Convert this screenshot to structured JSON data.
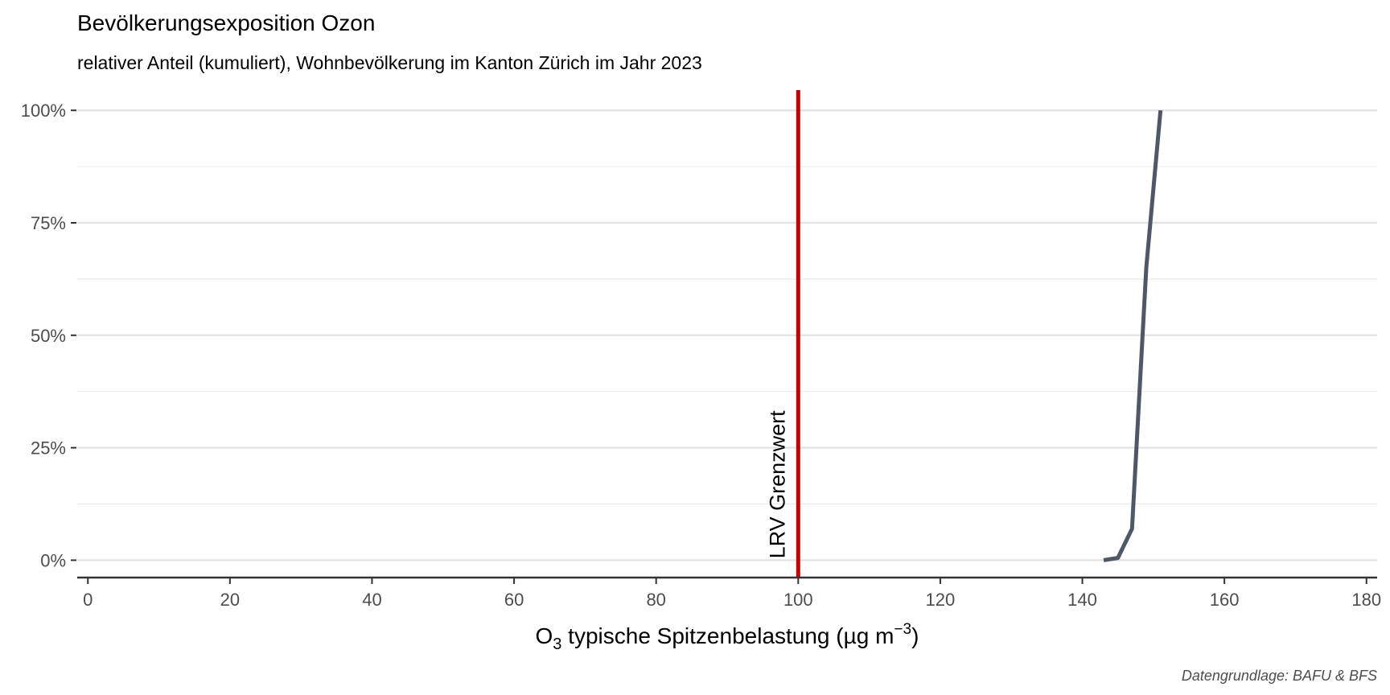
{
  "chart_data": {
    "type": "line",
    "title": "Bevölkerungsexposition Ozon",
    "subtitle": "relativer Anteil (kumuliert), Wohnbevölkerung im Kanton Zürich im Jahr 2023",
    "xlabel": {
      "main": "O",
      "subscript": "3",
      "rest": " typische Spitzenbelastung (µg m",
      "superscript": "−3",
      "close": ")"
    },
    "ylabel": "",
    "caption": "Datengrundlage: BAFU & BFS",
    "xlim": [
      -1.5,
      181.5
    ],
    "ylim": [
      -0.035,
      1.045
    ],
    "x_ticks": [
      0,
      20,
      40,
      60,
      80,
      100,
      120,
      140,
      160,
      180
    ],
    "x_tick_labels": [
      "0",
      "20",
      "40",
      "60",
      "80",
      "100",
      "120",
      "140",
      "160",
      "180"
    ],
    "y_ticks": [
      0,
      0.25,
      0.5,
      0.75,
      1.0
    ],
    "y_tick_labels": [
      "0%",
      "25%",
      "50%",
      "75%",
      "100%"
    ],
    "y_minor_ticks": [
      0.125,
      0.375,
      0.625,
      0.875
    ],
    "grid": true,
    "series": [
      {
        "color": "#4f5868",
        "x": [
          143,
          145,
          147,
          149,
          151
        ],
        "y": [
          0.0,
          0.005,
          0.07,
          0.65,
          1.0
        ]
      }
    ],
    "reference_line": {
      "x": 100,
      "label": "LRV Grenzwert",
      "color": "#c00000"
    }
  }
}
